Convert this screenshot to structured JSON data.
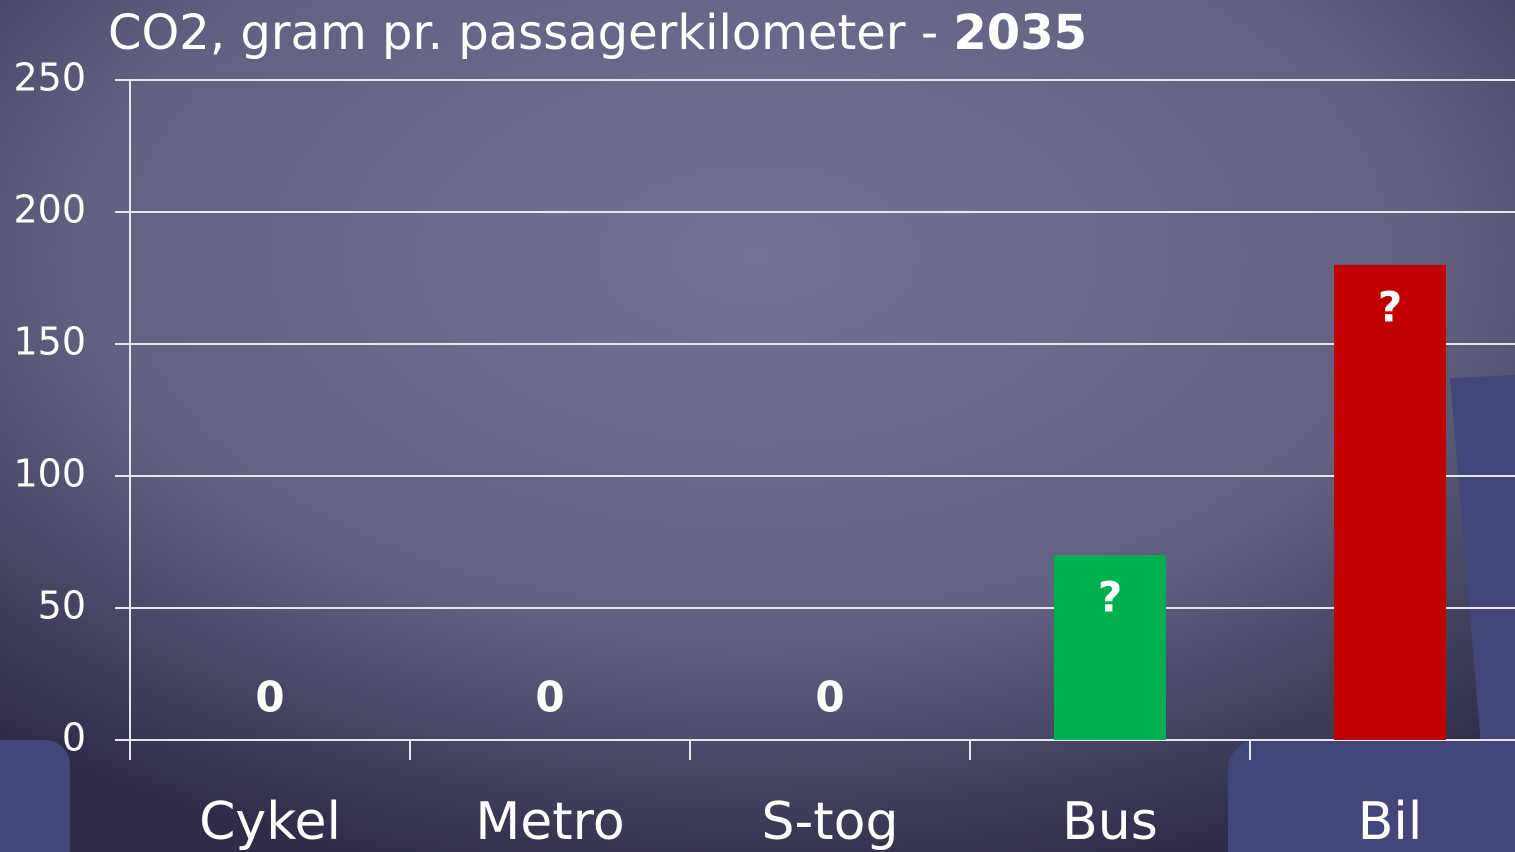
{
  "chart_data": {
    "type": "bar",
    "title": [
      "CO2, gram pr. passagerkilometer - ",
      "2035"
    ],
    "categories": [
      "Cykel",
      "Metro",
      "S-tog",
      "Bus",
      "Bil"
    ],
    "values": [
      0,
      0,
      0,
      70,
      180
    ],
    "value_labels": [
      "0",
      "0",
      "0",
      "?",
      "?"
    ],
    "colors": [
      "#00b050",
      "#00b050",
      "#00b050",
      "#00b050",
      "#c00000"
    ],
    "ylim": [
      0,
      250
    ],
    "yticks": [
      0,
      50,
      100,
      150,
      200,
      250
    ],
    "grid": true
  }
}
